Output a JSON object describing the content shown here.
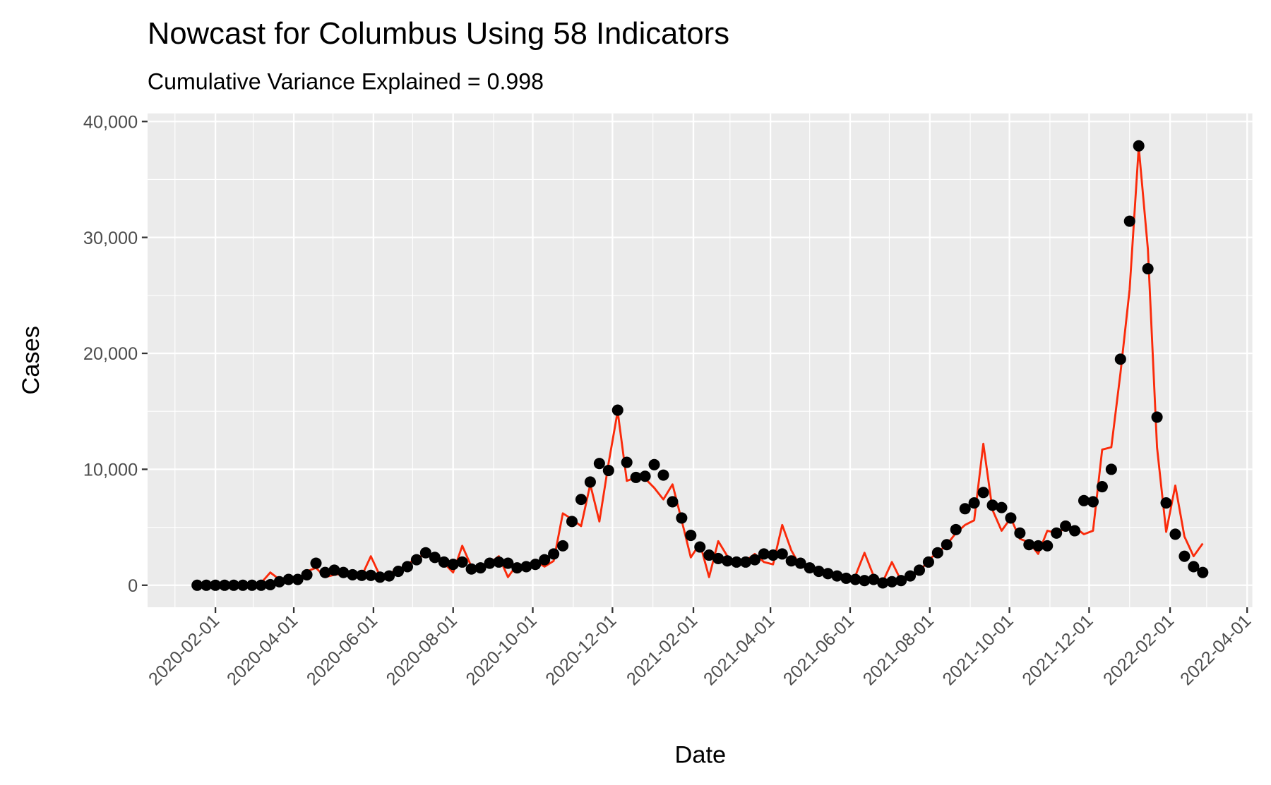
{
  "chart_data": {
    "type": "line",
    "title": "Nowcast for Columbus Using 58 Indicators",
    "subtitle": "Cumulative Variance Explained = 0.998",
    "x_label": "Date",
    "y_label": "Cases",
    "x": [
      "2020-01-18",
      "2020-01-25",
      "2020-02-01",
      "2020-02-08",
      "2020-02-15",
      "2020-02-22",
      "2020-02-29",
      "2020-03-07",
      "2020-03-14",
      "2020-03-21",
      "2020-03-28",
      "2020-04-04",
      "2020-04-11",
      "2020-04-18",
      "2020-04-25",
      "2020-05-02",
      "2020-05-09",
      "2020-05-16",
      "2020-05-23",
      "2020-05-30",
      "2020-06-06",
      "2020-06-13",
      "2020-06-20",
      "2020-06-27",
      "2020-07-04",
      "2020-07-11",
      "2020-07-18",
      "2020-07-25",
      "2020-08-01",
      "2020-08-08",
      "2020-08-15",
      "2020-08-22",
      "2020-08-29",
      "2020-09-05",
      "2020-09-12",
      "2020-09-19",
      "2020-09-26",
      "2020-10-03",
      "2020-10-10",
      "2020-10-17",
      "2020-10-24",
      "2020-10-31",
      "2020-11-07",
      "2020-11-14",
      "2020-11-21",
      "2020-11-28",
      "2020-12-05",
      "2020-12-12",
      "2020-12-19",
      "2020-12-26",
      "2021-01-02",
      "2021-01-09",
      "2021-01-16",
      "2021-01-23",
      "2021-01-30",
      "2021-02-06",
      "2021-02-13",
      "2021-02-20",
      "2021-02-27",
      "2021-03-06",
      "2021-03-13",
      "2021-03-20",
      "2021-03-27",
      "2021-04-03",
      "2021-04-10",
      "2021-04-17",
      "2021-04-24",
      "2021-05-01",
      "2021-05-08",
      "2021-05-15",
      "2021-05-22",
      "2021-05-29",
      "2021-06-05",
      "2021-06-12",
      "2021-06-19",
      "2021-06-26",
      "2021-07-03",
      "2021-07-10",
      "2021-07-17",
      "2021-07-24",
      "2021-07-31",
      "2021-08-07",
      "2021-08-14",
      "2021-08-21",
      "2021-08-28",
      "2021-09-04",
      "2021-09-11",
      "2021-09-18",
      "2021-09-25",
      "2021-10-02",
      "2021-10-09",
      "2021-10-16",
      "2021-10-23",
      "2021-10-30",
      "2021-11-06",
      "2021-11-13",
      "2021-11-20",
      "2021-11-27",
      "2021-12-04",
      "2021-12-11",
      "2021-12-18",
      "2021-12-25",
      "2022-01-01",
      "2022-01-08",
      "2022-01-15",
      "2022-01-22",
      "2022-01-29",
      "2022-02-05",
      "2022-02-12",
      "2022-02-19",
      "2022-02-26"
    ],
    "series": [
      {
        "geom": "line",
        "color": "#fa2a0a",
        "values": [
          200,
          100,
          100,
          200,
          200,
          100,
          100,
          200,
          1100,
          500,
          600,
          400,
          1200,
          1500,
          700,
          900,
          1000,
          900,
          800,
          2500,
          800,
          1000,
          1400,
          1700,
          2500,
          2500,
          2500,
          1900,
          1100,
          3400,
          1600,
          1400,
          1900,
          2500,
          700,
          1800,
          1500,
          2100,
          1600,
          2100,
          6200,
          5700,
          5100,
          8700,
          5500,
          10500,
          15000,
          9000,
          9300,
          9200,
          8400,
          7400,
          8700,
          5600,
          2400,
          3600,
          700,
          3800,
          2500,
          2000,
          2100,
          2700,
          2000,
          1800,
          5200,
          3000,
          1600,
          1600,
          1200,
          1000,
          700,
          400,
          800,
          2800,
          800,
          300,
          2000,
          400,
          800,
          1100,
          2200,
          2800,
          3500,
          4500,
          5200,
          5600,
          12200,
          6500,
          4700,
          5800,
          4000,
          3700,
          2700,
          4700,
          4500,
          4900,
          5000,
          4400,
          4700,
          11700,
          11900,
          18300,
          25500,
          37800,
          29000,
          11900,
          4600,
          8600,
          4200,
          2500,
          3600
        ]
      },
      {
        "geom": "point",
        "color": "#000000",
        "values": [
          0,
          0,
          0,
          0,
          0,
          0,
          0,
          0,
          50,
          300,
          500,
          500,
          900,
          1900,
          1100,
          1300,
          1100,
          900,
          850,
          850,
          700,
          800,
          1200,
          1600,
          2200,
          2800,
          2400,
          2000,
          1800,
          2000,
          1400,
          1500,
          1900,
          2000,
          1900,
          1500,
          1600,
          1800,
          2200,
          2700,
          3400,
          5500,
          7400,
          8900,
          10500,
          9900,
          15100,
          10600,
          9300,
          9400,
          10400,
          9500,
          7200,
          5800,
          4300,
          3300,
          2600,
          2300,
          2100,
          2000,
          2000,
          2200,
          2700,
          2600,
          2700,
          2100,
          1900,
          1500,
          1200,
          1000,
          800,
          600,
          500,
          400,
          500,
          200,
          300,
          400,
          800,
          1300,
          2000,
          2800,
          3500,
          4800,
          6600,
          7100,
          8000,
          6900,
          6700,
          5800,
          4500,
          3500,
          3400,
          3400,
          4500,
          5100,
          4700,
          7300,
          7200,
          8500,
          10000,
          19500,
          31400,
          37900,
          27300,
          14500,
          7100,
          4400,
          2500,
          1600,
          1100
        ]
      }
    ],
    "xlim": [
      "2019-12-11",
      "2022-04-05"
    ],
    "xticks": [
      "2020-02-01",
      "2020-04-01",
      "2020-06-01",
      "2020-08-01",
      "2020-10-01",
      "2020-12-01",
      "2021-02-01",
      "2021-04-01",
      "2021-06-01",
      "2021-08-01",
      "2021-10-01",
      "2021-12-01",
      "2022-02-01",
      "2022-04-01"
    ],
    "xminor": [
      "2020-01-01",
      "2020-03-01",
      "2020-05-01",
      "2020-07-01",
      "2020-09-01",
      "2020-11-01",
      "2021-01-01",
      "2021-03-01",
      "2021-05-01",
      "2021-07-01",
      "2021-09-01",
      "2021-11-01",
      "2022-01-01",
      "2022-03-01"
    ],
    "ylim": [
      -1900,
      40700
    ],
    "yticks": [
      0,
      {
        "value": 10000,
        "label": "10,000"
      },
      {
        "value": 20000,
        "label": "20,000"
      },
      {
        "value": 30000,
        "label": "30,000"
      },
      {
        "value": 40000,
        "label": "40,000"
      }
    ],
    "yminor": [
      5000,
      15000,
      25000,
      35000
    ],
    "grid": true
  }
}
